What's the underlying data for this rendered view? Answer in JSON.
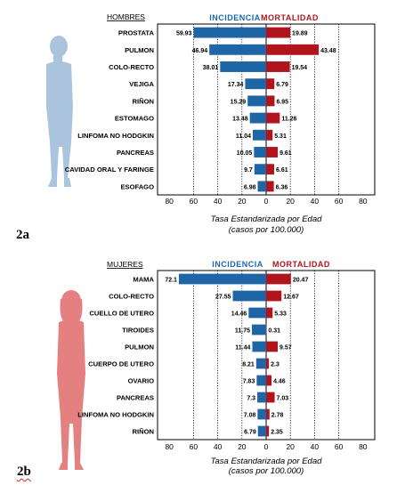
{
  "charts": [
    {
      "id": "2a",
      "panel_label": "2a",
      "group_label": "HOMBRES",
      "incidence_label": "INCIDENCIA",
      "mortality_label": "MORTALIDAD",
      "xlabel_line1": "Tasa Estandarizada por Edad",
      "xlabel_line2": "(casos por 100.000)",
      "figure_color": "#a9c4dc"
    },
    {
      "id": "2b",
      "panel_label": "2b",
      "group_label": "MUJERES",
      "incidence_label": "INCIDENCIA",
      "mortality_label": "MORTALIDAD",
      "xlabel_line1": "Tasa Estandarizada por Edad",
      "xlabel_line2": "(casos por 100.000)",
      "figure_color": "#e58080"
    }
  ],
  "colors": {
    "incidence": "#1f66a6",
    "mortality": "#b0141c",
    "incidence_header": "#1a66b3",
    "mortality_header": "#b0141c"
  },
  "chart_data": [
    {
      "type": "bar",
      "title": "",
      "categories": [
        "PROSTATA",
        "PULMON",
        "COLO-RECTO",
        "VEJIGA",
        "RIÑON",
        "ESTOMAGO",
        "LINFOMA NO HODGKIN",
        "PANCREAS",
        "CAVIDAD ORAL Y FARINGE",
        "ESOFAGO"
      ],
      "series": [
        {
          "name": "INCIDENCIA",
          "values": [
            59.93,
            46.94,
            38.01,
            17.34,
            15.29,
            13.48,
            11.04,
            10.05,
            9.7,
            6.98
          ]
        },
        {
          "name": "MORTALIDAD",
          "values": [
            19.89,
            43.48,
            19.54,
            6.79,
            6.95,
            11.26,
            5.31,
            9.61,
            6.61,
            6.36
          ]
        }
      ],
      "xlim": [
        -80,
        80
      ],
      "tick_values": [
        80,
        60,
        40,
        20,
        0,
        20,
        40,
        60,
        80
      ],
      "xlabel": "Tasa Estandarizada por Edad (casos por 100.000)",
      "grid": true
    },
    {
      "type": "bar",
      "title": "",
      "categories": [
        "MAMA",
        "COLO-RECTO",
        "CUELLO DE UTERO",
        "TIROIDES",
        "PULMON",
        "CUERPO DE UTERO",
        "OVARIO",
        "PANCREAS",
        "LINFOMA NO HODGKIN",
        "RIÑON"
      ],
      "series": [
        {
          "name": "INCIDENCIA",
          "values": [
            72.1,
            27.55,
            14.46,
            11.75,
            11.44,
            8.21,
            7.83,
            7.3,
            7.08,
            6.79
          ]
        },
        {
          "name": "MORTALIDAD",
          "values": [
            20.47,
            12.67,
            5.33,
            0.31,
            9.57,
            2.3,
            4.46,
            7.03,
            2.78,
            2.35
          ]
        }
      ],
      "xlim": [
        -80,
        80
      ],
      "tick_values": [
        80,
        60,
        40,
        20,
        0,
        20,
        40,
        60,
        80
      ],
      "xlabel": "Tasa Estandarizada por Edad (casos por 100.000)",
      "grid": true
    }
  ]
}
